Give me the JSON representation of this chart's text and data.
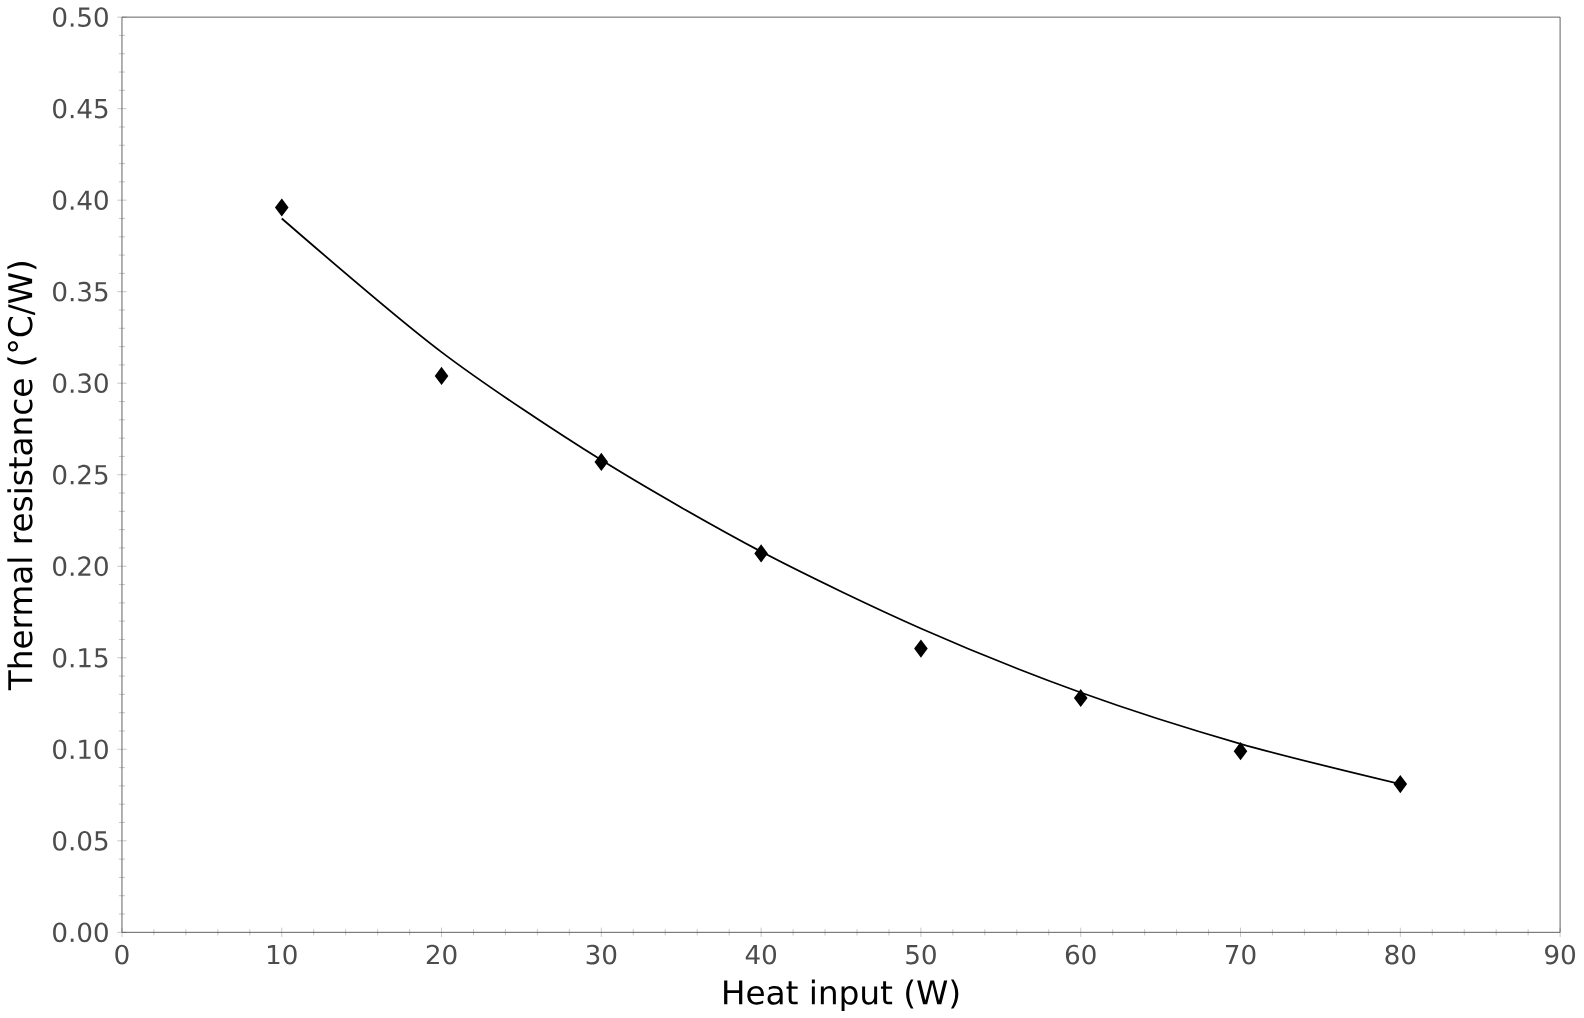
{
  "chart_data": {
    "type": "scatter",
    "xlabel": "Heat input (W)",
    "ylabel": "Thermal resistance (°C/W)",
    "xlim": [
      0,
      90
    ],
    "xticks": [
      0,
      10,
      20,
      30,
      40,
      50,
      60,
      70,
      80,
      90
    ],
    "ylim": [
      0,
      0.5
    ],
    "yticks": [
      {
        "value": 0,
        "label": "0.00"
      },
      {
        "value": 0.05,
        "label": "0.05"
      },
      {
        "value": 0.1,
        "label": "0.10"
      },
      {
        "value": 0.15,
        "label": "0.15"
      },
      {
        "value": 0.2,
        "label": "0.20"
      },
      {
        "value": 0.25,
        "label": "0.25"
      },
      {
        "value": 0.3,
        "label": "0.30"
      },
      {
        "value": 0.35,
        "label": "0.35"
      },
      {
        "value": 0.4,
        "label": "0.40"
      },
      {
        "value": 0.45,
        "label": "0.45"
      },
      {
        "value": 0.5,
        "label": "0.50"
      }
    ],
    "grid": false,
    "marker": "diamond",
    "series": [
      {
        "color": "#000000",
        "x": [
          10,
          20,
          30,
          40,
          50,
          60,
          70,
          80
        ],
        "values": [
          0.396,
          0.304,
          0.257,
          0.207,
          0.155,
          0.128,
          0.099,
          0.081
        ]
      },
      {
        "type": "line",
        "color": "#000000",
        "marker": "none",
        "line_style": "solid",
        "x": [
          10,
          20,
          30,
          40,
          50,
          60,
          70,
          80
        ],
        "values": [
          0.39,
          0.317,
          0.258,
          0.208,
          0.166,
          0.131,
          0.103,
          0.081
        ]
      }
    ]
  }
}
